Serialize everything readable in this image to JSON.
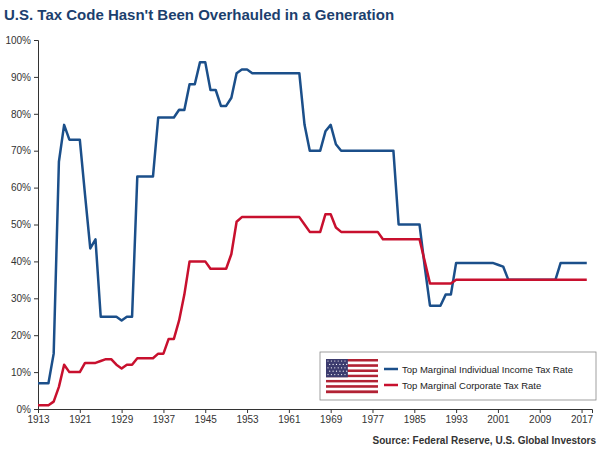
{
  "chart_data": {
    "type": "line",
    "title": "U.S. Tax Code Hasn't Been Overhauled in a Generation",
    "source": "Source: Federal Reserve, U.S. Global Investors",
    "x": [
      1913,
      1914,
      1915,
      1916,
      1917,
      1918,
      1919,
      1920,
      1921,
      1922,
      1923,
      1924,
      1925,
      1926,
      1927,
      1928,
      1929,
      1930,
      1931,
      1932,
      1933,
      1934,
      1935,
      1936,
      1937,
      1938,
      1939,
      1940,
      1941,
      1942,
      1943,
      1944,
      1945,
      1946,
      1947,
      1948,
      1949,
      1950,
      1951,
      1952,
      1953,
      1954,
      1955,
      1956,
      1957,
      1958,
      1959,
      1960,
      1961,
      1962,
      1963,
      1964,
      1965,
      1966,
      1967,
      1968,
      1969,
      1970,
      1971,
      1972,
      1973,
      1974,
      1975,
      1976,
      1977,
      1978,
      1979,
      1980,
      1981,
      1982,
      1983,
      1984,
      1985,
      1986,
      1987,
      1988,
      1989,
      1990,
      1991,
      1992,
      1993,
      1994,
      1995,
      1996,
      1997,
      1998,
      1999,
      2000,
      2001,
      2002,
      2003,
      2004,
      2005,
      2006,
      2007,
      2008,
      2009,
      2010,
      2011,
      2012,
      2013,
      2014,
      2015,
      2016,
      2017,
      2018
    ],
    "series": [
      {
        "name": "Top Marginal Individual Income Tax Rate",
        "color": "#1b4f8a",
        "values": [
          7,
          7,
          7,
          15,
          67,
          77,
          73,
          73,
          73,
          58,
          43.5,
          46,
          25,
          25,
          25,
          25,
          24,
          25,
          25,
          63,
          63,
          63,
          63,
          79,
          79,
          79,
          79,
          81.1,
          81,
          88,
          88,
          94,
          94,
          86.45,
          86.45,
          82.13,
          82.13,
          84.36,
          91,
          92,
          92,
          91,
          91,
          91,
          91,
          91,
          91,
          91,
          91,
          91,
          91,
          77,
          70,
          70,
          70,
          75.25,
          77,
          71.75,
          70,
          70,
          70,
          70,
          70,
          70,
          70,
          70,
          70,
          70,
          70,
          50,
          50,
          50,
          50,
          50,
          38.5,
          28,
          28,
          28,
          31,
          31,
          39.6,
          39.6,
          39.6,
          39.6,
          39.6,
          39.6,
          39.6,
          39.6,
          39.1,
          38.6,
          35,
          35,
          35,
          35,
          35,
          35,
          35,
          35,
          35,
          35,
          39.6,
          39.6,
          39.6,
          39.6,
          39.6,
          39.6
        ]
      },
      {
        "name": "Top Marginal Corporate Tax Rate",
        "color": "#c8102e",
        "values": [
          1,
          1,
          1,
          2,
          6,
          12,
          10,
          10,
          10,
          12.5,
          12.5,
          12.5,
          13,
          13.5,
          13.5,
          12,
          11,
          12,
          12,
          13.75,
          13.75,
          13.75,
          13.75,
          15,
          15,
          19,
          19,
          24,
          31,
          40,
          40,
          40,
          40,
          38,
          38,
          38,
          38,
          42,
          50.75,
          52,
          52,
          52,
          52,
          52,
          52,
          52,
          52,
          52,
          52,
          52,
          52,
          50,
          48,
          48,
          48,
          52.8,
          52.8,
          49.2,
          48,
          48,
          48,
          48,
          48,
          48,
          48,
          48,
          46,
          46,
          46,
          46,
          46,
          46,
          46,
          46,
          40,
          34,
          34,
          34,
          34,
          34,
          35,
          35,
          35,
          35,
          35,
          35,
          35,
          35,
          35,
          35,
          35,
          35,
          35,
          35,
          35,
          35,
          35,
          35,
          35,
          35,
          35,
          35,
          35,
          35,
          35,
          35
        ]
      }
    ],
    "xlim": [
      1913,
      2019
    ],
    "xticks": [
      1913,
      1921,
      1929,
      1937,
      1945,
      1953,
      1961,
      1969,
      1977,
      1985,
      1993,
      2001,
      2009,
      2017
    ],
    "ylim": [
      0,
      100
    ],
    "yticks": [
      {
        "value": 0,
        "label": "0%"
      },
      {
        "value": 10,
        "label": "10%"
      },
      {
        "value": 20,
        "label": "20%"
      },
      {
        "value": 30,
        "label": "30%"
      },
      {
        "value": 40,
        "label": "40%"
      },
      {
        "value": 50,
        "label": "50%"
      },
      {
        "value": 60,
        "label": "60%"
      },
      {
        "value": 70,
        "label": "70%"
      },
      {
        "value": 80,
        "label": "80%"
      },
      {
        "value": 90,
        "label": "90%"
      },
      {
        "value": 100,
        "label": "100%"
      }
    ],
    "grid": false,
    "legend": "lower right"
  }
}
